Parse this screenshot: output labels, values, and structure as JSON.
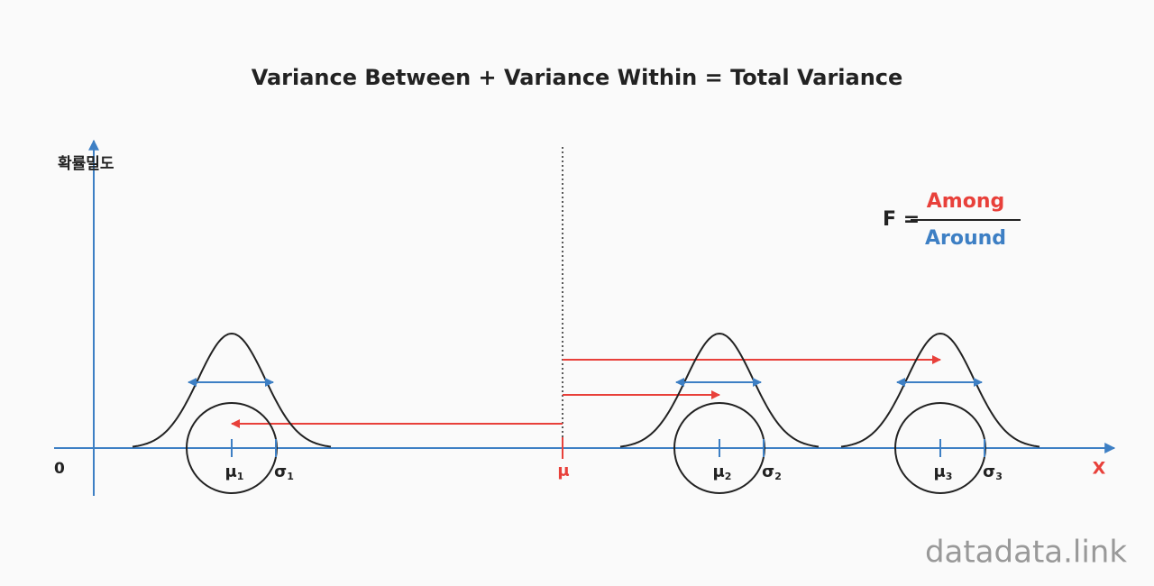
{
  "title": "Variance Between + Variance Within = Total Variance",
  "y_axis_label": "확률밀도",
  "origin_label": "0",
  "x_axis_label": "X",
  "grand_mean_label": "μ",
  "groups": [
    {
      "mean_symbol": "μ",
      "mean_index": "1",
      "sd_symbol": "σ",
      "sd_index": "1"
    },
    {
      "mean_symbol": "μ",
      "mean_index": "2",
      "sd_symbol": "σ",
      "sd_index": "2"
    },
    {
      "mean_symbol": "μ",
      "mean_index": "3",
      "sd_symbol": "σ",
      "sd_index": "3"
    }
  ],
  "formula": {
    "lhs": "F =",
    "numerator": "Among",
    "denominator": "Around"
  },
  "watermark": "datadata.link"
}
